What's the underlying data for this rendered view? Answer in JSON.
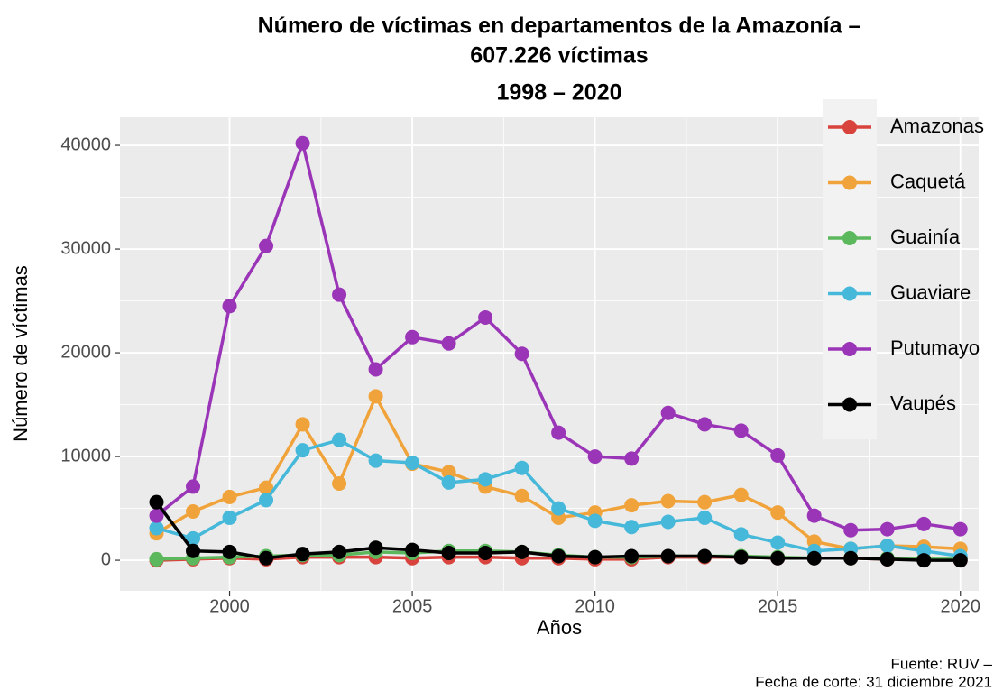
{
  "chart_data": {
    "type": "line",
    "title": [
      "Número de víctimas en departamentos de la Amazonía –",
      "607.226 víctimas",
      "1998 – 2020"
    ],
    "x_label": "Años",
    "y_label": "Número de víctimas",
    "caption": [
      "Fuente: RUV –",
      "Fecha de corte: 31 diciembre 2021"
    ],
    "x": [
      1998,
      1999,
      2000,
      2001,
      2002,
      2003,
      2004,
      2005,
      2006,
      2007,
      2008,
      2009,
      2010,
      2011,
      2012,
      2013,
      2014,
      2015,
      2016,
      2017,
      2018,
      2019,
      2020
    ],
    "series": [
      {
        "name": "Amazonas",
        "color": "#d9433d",
        "values": [
          0,
          100,
          200,
          100,
          300,
          300,
          300,
          200,
          300,
          300,
          200,
          200,
          100,
          100,
          300,
          300,
          300,
          200,
          200,
          200,
          100,
          100,
          0
        ]
      },
      {
        "name": "Caquetá",
        "color": "#f0a33a",
        "values": [
          2600,
          4700,
          6100,
          7000,
          13100,
          7400,
          15800,
          9300,
          8500,
          7100,
          6200,
          4100,
          4600,
          5300,
          5700,
          5600,
          6300,
          4600,
          1800,
          1100,
          1400,
          1300,
          1100
        ]
      },
      {
        "name": "Guainía",
        "color": "#5cb85c",
        "values": [
          100,
          200,
          300,
          400,
          500,
          500,
          800,
          700,
          900,
          900,
          800,
          500,
          300,
          300,
          400,
          400,
          400,
          300,
          200,
          200,
          200,
          100,
          100
        ]
      },
      {
        "name": "Guaviare",
        "color": "#46b8da",
        "values": [
          3100,
          2100,
          4100,
          5800,
          10600,
          11600,
          9600,
          9400,
          7500,
          7800,
          8900,
          5000,
          3800,
          3200,
          3700,
          4100,
          2500,
          1700,
          900,
          1100,
          1400,
          900,
          400
        ]
      },
      {
        "name": "Putumayo",
        "color": "#9b35b8",
        "values": [
          4300,
          7100,
          24500,
          30300,
          40200,
          25600,
          18400,
          21500,
          20900,
          23400,
          19900,
          12300,
          10000,
          9800,
          14200,
          13100,
          12500,
          10100,
          4300,
          2900,
          3000,
          3500,
          3000
        ]
      },
      {
        "name": "Vaupés",
        "color": "#000000",
        "values": [
          5600,
          900,
          800,
          200,
          600,
          800,
          1200,
          1000,
          700,
          700,
          800,
          400,
          300,
          400,
          400,
          400,
          300,
          200,
          200,
          200,
          100,
          0,
          0
        ]
      }
    ],
    "xlim": [
      1997,
      2020.5
    ],
    "xticks": [
      2000,
      2005,
      2010,
      2015,
      2020
    ],
    "ylim": [
      -2950,
      42700
    ],
    "yticks": [
      0,
      10000,
      20000,
      30000,
      40000
    ],
    "grid": true,
    "legend": "top-right"
  }
}
